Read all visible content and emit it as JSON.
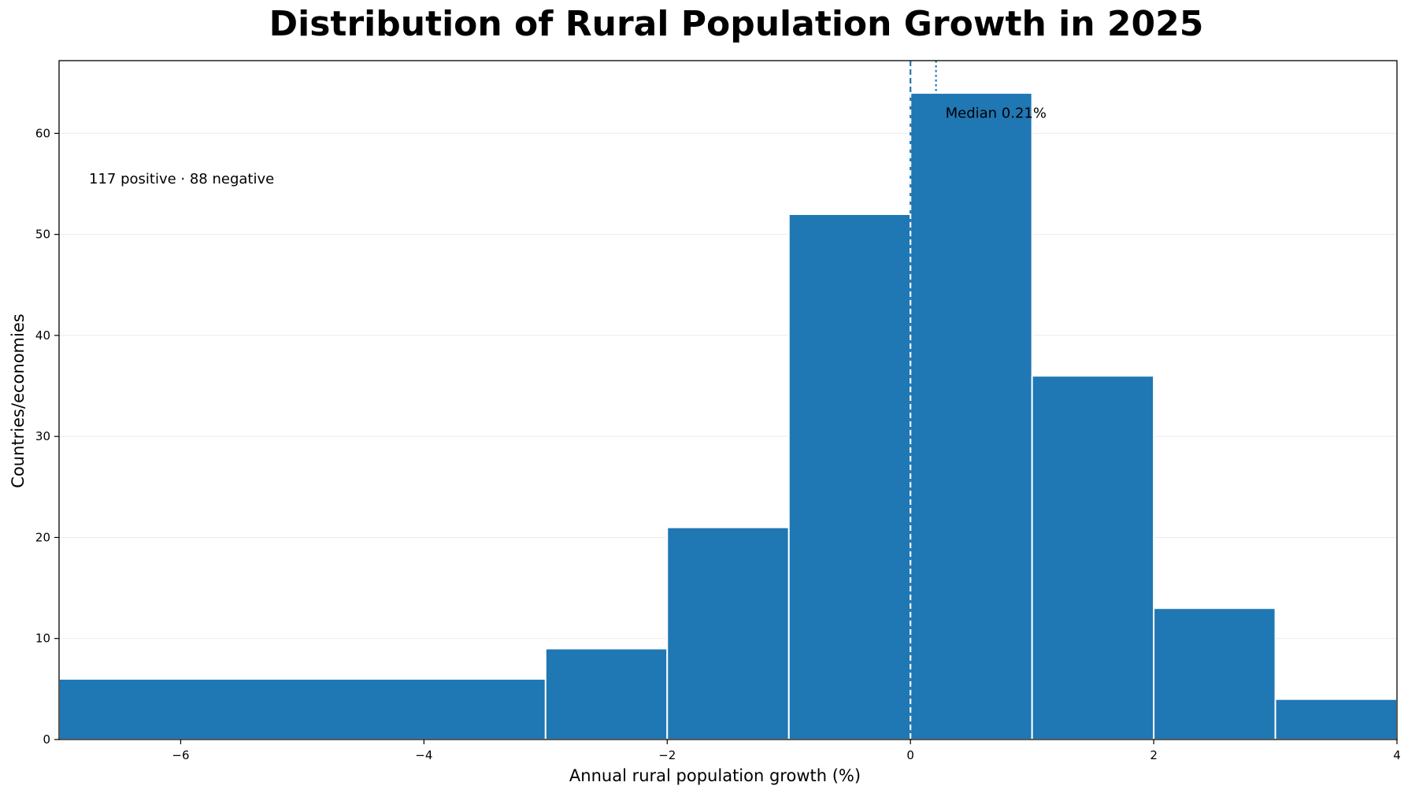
{
  "chart_data": {
    "type": "bar",
    "title": "Distribution of Rural Population Growth in 2025",
    "xlabel": "Annual rural population growth (%)",
    "ylabel": "Countries/economies",
    "xlim": [
      -7,
      4
    ],
    "ylim": [
      0,
      67.2
    ],
    "x_ticks": [
      -6,
      -4,
      -2,
      0,
      2,
      4
    ],
    "x_tick_labels": [
      "−6",
      "−4",
      "−2",
      "0",
      "2",
      "4"
    ],
    "y_ticks": [
      0,
      10,
      20,
      30,
      40,
      50,
      60
    ],
    "y_tick_labels": [
      "0",
      "10",
      "20",
      "30",
      "40",
      "50",
      "60"
    ],
    "bins": [
      {
        "start": -7,
        "end": -3,
        "count": 6
      },
      {
        "start": -3,
        "end": -2,
        "count": 9
      },
      {
        "start": -2,
        "end": -1,
        "count": 21
      },
      {
        "start": -1,
        "end": 0,
        "count": 52
      },
      {
        "start": 0,
        "end": 1,
        "count": 64
      },
      {
        "start": 1,
        "end": 2,
        "count": 36
      },
      {
        "start": 2,
        "end": 3,
        "count": 13
      },
      {
        "start": 3,
        "end": 4,
        "count": 4
      }
    ],
    "reference_lines": [
      {
        "x": 0,
        "style": "dashed"
      },
      {
        "x": 0.21,
        "style": "dotted"
      }
    ],
    "annotations": {
      "median_label": "Median 0.21%",
      "counts_label": "117 positive · 88 negative"
    },
    "grid": "horizontal",
    "legend": "none",
    "colors": {
      "bar": "#1f77b4",
      "bar_edge": "#ffffff",
      "line": "#1f77b4",
      "grid": "#ebebeb",
      "axes": "#000000"
    }
  }
}
